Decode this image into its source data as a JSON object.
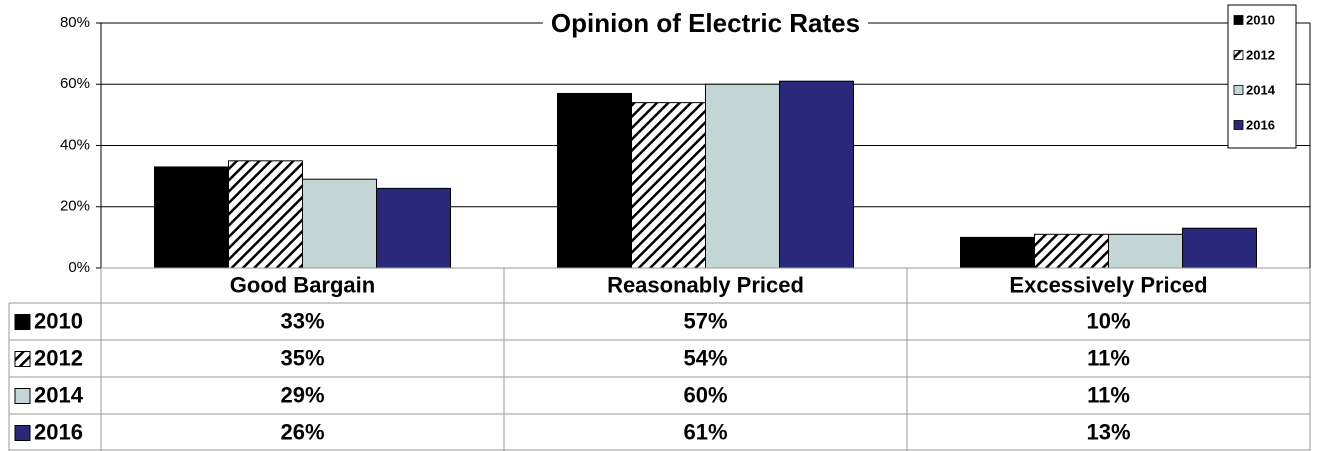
{
  "chart_data": {
    "type": "bar",
    "title": "Opinion of Electric Rates",
    "categories": [
      "Good Bargain",
      "Reasonably Priced",
      "Excessively Priced"
    ],
    "series": [
      {
        "name": "2010",
        "color": "#000000",
        "values": [
          33,
          57,
          10
        ],
        "value_labels": [
          "33%",
          "57%",
          "10%"
        ]
      },
      {
        "name": "2012",
        "color": "#000000",
        "pattern": "hatch",
        "values": [
          35,
          54,
          11
        ],
        "value_labels": [
          "35%",
          "54%",
          "11%"
        ]
      },
      {
        "name": "2014",
        "color": "#c3d5d5",
        "values": [
          29,
          60,
          11
        ],
        "value_labels": [
          "29%",
          "60%",
          "11%"
        ]
      },
      {
        "name": "2016",
        "color": "#29287a",
        "values": [
          26,
          61,
          13
        ],
        "value_labels": [
          "26%",
          "61%",
          "13%"
        ]
      }
    ],
    "ylim": [
      0,
      80
    ],
    "yticks": [
      {
        "value": 0,
        "label": "0%"
      },
      {
        "value": 20,
        "label": "20%"
      },
      {
        "value": 40,
        "label": "40%"
      },
      {
        "value": 60,
        "label": "60%"
      },
      {
        "value": 80,
        "label": "80%"
      }
    ],
    "grid": true,
    "legend": "top-right",
    "data_table": true
  }
}
